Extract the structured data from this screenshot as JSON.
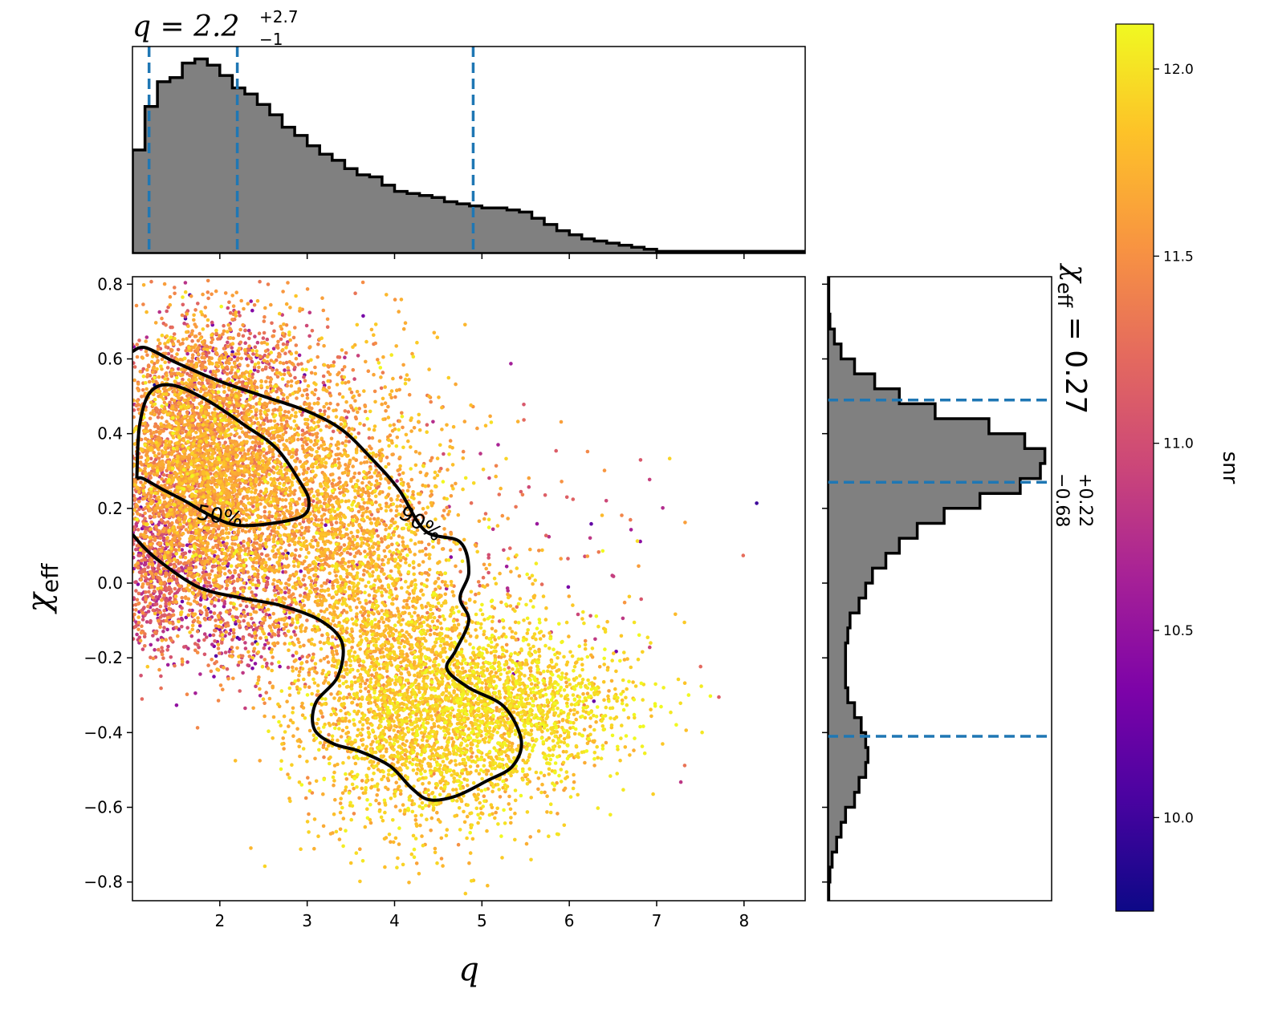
{
  "chart_data": [
    {
      "type": "scatter",
      "panel": "joint",
      "xlabel": "q",
      "ylabel_symbol": "χ",
      "ylabel_sub": "eff",
      "xlim": [
        1.0,
        8.7
      ],
      "ylim": [
        -0.85,
        0.82
      ],
      "xticks": [
        2,
        3,
        4,
        5,
        6,
        7,
        8
      ],
      "yticks": [
        -0.8,
        -0.6,
        -0.4,
        -0.2,
        0.0,
        0.2,
        0.4,
        0.6,
        0.8
      ],
      "ytick_labels": [
        "−0.8",
        "−0.6",
        "−0.4",
        "−0.2",
        "0.0",
        "0.2",
        "0.4",
        "0.6",
        "0.8"
      ],
      "color_by": "snr",
      "colormap": "plasma",
      "contours": [
        {
          "label": "50%",
          "label_at": [
            2.0,
            0.18
          ],
          "points": [
            [
              1.05,
              0.28
            ],
            [
              1.08,
              0.42
            ],
            [
              1.2,
              0.51
            ],
            [
              1.45,
              0.53
            ],
            [
              1.85,
              0.49
            ],
            [
              2.3,
              0.42
            ],
            [
              2.65,
              0.36
            ],
            [
              2.92,
              0.27
            ],
            [
              3.02,
              0.22
            ],
            [
              2.95,
              0.18
            ],
            [
              2.6,
              0.16
            ],
            [
              2.2,
              0.155
            ],
            [
              1.9,
              0.18
            ],
            [
              1.6,
              0.22
            ],
            [
              1.35,
              0.25
            ],
            [
              1.12,
              0.28
            ],
            [
              1.05,
              0.28
            ]
          ]
        },
        {
          "label": "90%",
          "label_at": [
            4.3,
            0.16
          ],
          "points": [
            [
              1.0,
              0.62
            ],
            [
              1.15,
              0.63
            ],
            [
              1.5,
              0.59
            ],
            [
              2.0,
              0.54
            ],
            [
              2.5,
              0.5
            ],
            [
              3.0,
              0.46
            ],
            [
              3.4,
              0.41
            ],
            [
              3.75,
              0.33
            ],
            [
              4.05,
              0.25
            ],
            [
              4.35,
              0.14
            ],
            [
              4.75,
              0.11
            ],
            [
              4.85,
              0.03
            ],
            [
              4.75,
              -0.04
            ],
            [
              4.85,
              -0.1
            ],
            [
              4.7,
              -0.18
            ],
            [
              4.6,
              -0.23
            ],
            [
              4.85,
              -0.28
            ],
            [
              5.25,
              -0.33
            ],
            [
              5.45,
              -0.42
            ],
            [
              5.35,
              -0.49
            ],
            [
              5.05,
              -0.53
            ],
            [
              4.7,
              -0.57
            ],
            [
              4.4,
              -0.58
            ],
            [
              4.2,
              -0.55
            ],
            [
              3.95,
              -0.49
            ],
            [
              3.6,
              -0.45
            ],
            [
              3.3,
              -0.43
            ],
            [
              3.08,
              -0.39
            ],
            [
              3.1,
              -0.32
            ],
            [
              3.35,
              -0.25
            ],
            [
              3.4,
              -0.16
            ],
            [
              3.15,
              -0.1
            ],
            [
              2.7,
              -0.06
            ],
            [
              2.25,
              -0.04
            ],
            [
              1.75,
              -0.01
            ],
            [
              1.25,
              0.07
            ],
            [
              1.0,
              0.13
            ]
          ]
        }
      ],
      "clusters": [
        {
          "count": 2800,
          "mean": [
            1.7,
            0.33
          ],
          "sd": [
            0.45,
            0.17
          ],
          "snr_mean": 11.55,
          "snr_sd": 0.22
        },
        {
          "count": 2200,
          "mean": [
            2.5,
            0.25
          ],
          "sd": [
            0.6,
            0.2
          ],
          "snr_mean": 11.6,
          "snr_sd": 0.18
        },
        {
          "count": 1800,
          "mean": [
            3.6,
            0.05
          ],
          "sd": [
            0.6,
            0.25
          ],
          "snr_mean": 11.7,
          "snr_sd": 0.18
        },
        {
          "count": 2600,
          "mean": [
            4.4,
            -0.35
          ],
          "sd": [
            0.7,
            0.16
          ],
          "snr_mean": 11.85,
          "snr_sd": 0.15
        },
        {
          "count": 900,
          "mean": [
            5.6,
            -0.33
          ],
          "sd": [
            0.6,
            0.1
          ],
          "snr_mean": 11.95,
          "snr_sd": 0.13
        },
        {
          "count": 700,
          "mean": [
            1.25,
            0.05
          ],
          "sd": [
            0.25,
            0.12
          ],
          "snr_mean": 11.0,
          "snr_sd": 0.3
        },
        {
          "count": 400,
          "mean": [
            2.2,
            -0.08
          ],
          "sd": [
            0.5,
            0.1
          ],
          "snr_mean": 10.9,
          "snr_sd": 0.4
        },
        {
          "count": 350,
          "mean": [
            2.0,
            0.6
          ],
          "sd": [
            0.6,
            0.08
          ],
          "snr_mean": 11.1,
          "snr_sd": 0.4
        },
        {
          "count": 160,
          "mean": [
            5.5,
            0.05
          ],
          "sd": [
            1.2,
            0.25
          ],
          "snr_mean": 11.2,
          "snr_sd": 0.45
        }
      ]
    },
    {
      "type": "bar",
      "panel": "top-marginal",
      "title_main": "q = 2.2",
      "title_sup": "+2.7",
      "title_sub": "−1",
      "xlim": [
        1.0,
        8.7
      ],
      "bin_edges": [
        1.0,
        1.143,
        1.286,
        1.429,
        1.571,
        1.714,
        1.857,
        2.0,
        2.143,
        2.286,
        2.429,
        2.571,
        2.714,
        2.857,
        3.0,
        3.143,
        3.286,
        3.429,
        3.571,
        3.714,
        3.857,
        4.0,
        4.143,
        4.286,
        4.429,
        4.571,
        4.714,
        4.857,
        5.0,
        5.143,
        5.286,
        5.429,
        5.571,
        5.714,
        5.857,
        6.0,
        6.143,
        6.286,
        6.429,
        6.571,
        6.714,
        6.857,
        7.0,
        7.143,
        7.286,
        7.429,
        7.571,
        7.714,
        7.857,
        8.0,
        8.7
      ],
      "values": [
        0.5,
        0.71,
        0.83,
        0.85,
        0.92,
        0.94,
        0.91,
        0.86,
        0.8,
        0.77,
        0.72,
        0.67,
        0.61,
        0.57,
        0.52,
        0.48,
        0.45,
        0.41,
        0.38,
        0.37,
        0.33,
        0.3,
        0.29,
        0.28,
        0.27,
        0.25,
        0.24,
        0.23,
        0.22,
        0.22,
        0.21,
        0.2,
        0.17,
        0.14,
        0.11,
        0.09,
        0.07,
        0.06,
        0.05,
        0.04,
        0.03,
        0.02,
        0.01,
        0.01,
        0.01,
        0.01,
        0.01,
        0.01,
        0.01,
        0.01
      ],
      "quantile_lines": [
        1.19,
        2.2,
        4.9
      ]
    },
    {
      "type": "bar",
      "panel": "right-marginal",
      "orientation": "horizontal",
      "title_main": "χ",
      "title_sub_eff": "eff",
      "title_value": " = 0.27",
      "title_sup": "+0.22",
      "title_sub": "−0.68",
      "ylim": [
        -0.85,
        0.82
      ],
      "bin_edges": [
        -0.85,
        -0.8,
        -0.76,
        -0.72,
        -0.68,
        -0.64,
        -0.6,
        -0.56,
        -0.52,
        -0.48,
        -0.44,
        -0.4,
        -0.36,
        -0.32,
        -0.28,
        -0.24,
        -0.2,
        -0.16,
        -0.12,
        -0.08,
        -0.04,
        0.0,
        0.04,
        0.08,
        0.12,
        0.16,
        0.2,
        0.24,
        0.28,
        0.32,
        0.36,
        0.4,
        0.44,
        0.48,
        0.52,
        0.56,
        0.6,
        0.64,
        0.68,
        0.72,
        0.82
      ],
      "values": [
        0.005,
        0.01,
        0.02,
        0.04,
        0.06,
        0.08,
        0.12,
        0.14,
        0.17,
        0.18,
        0.17,
        0.15,
        0.12,
        0.09,
        0.08,
        0.08,
        0.08,
        0.09,
        0.1,
        0.14,
        0.17,
        0.2,
        0.26,
        0.32,
        0.4,
        0.52,
        0.68,
        0.86,
        0.95,
        0.97,
        0.88,
        0.72,
        0.48,
        0.32,
        0.21,
        0.12,
        0.06,
        0.03,
        0.01,
        0.005
      ],
      "quantile_lines": [
        -0.41,
        0.27,
        0.49
      ]
    },
    {
      "type": "colorbar",
      "panel": "colorbar",
      "label": "snr",
      "colormap": "plasma",
      "vmin": 9.75,
      "vmax": 12.12,
      "ticks": [
        10.0,
        10.5,
        11.0,
        11.5,
        12.0
      ],
      "tick_labels": [
        "10.0",
        "10.5",
        "11.0",
        "11.5",
        "12.0"
      ]
    }
  ]
}
